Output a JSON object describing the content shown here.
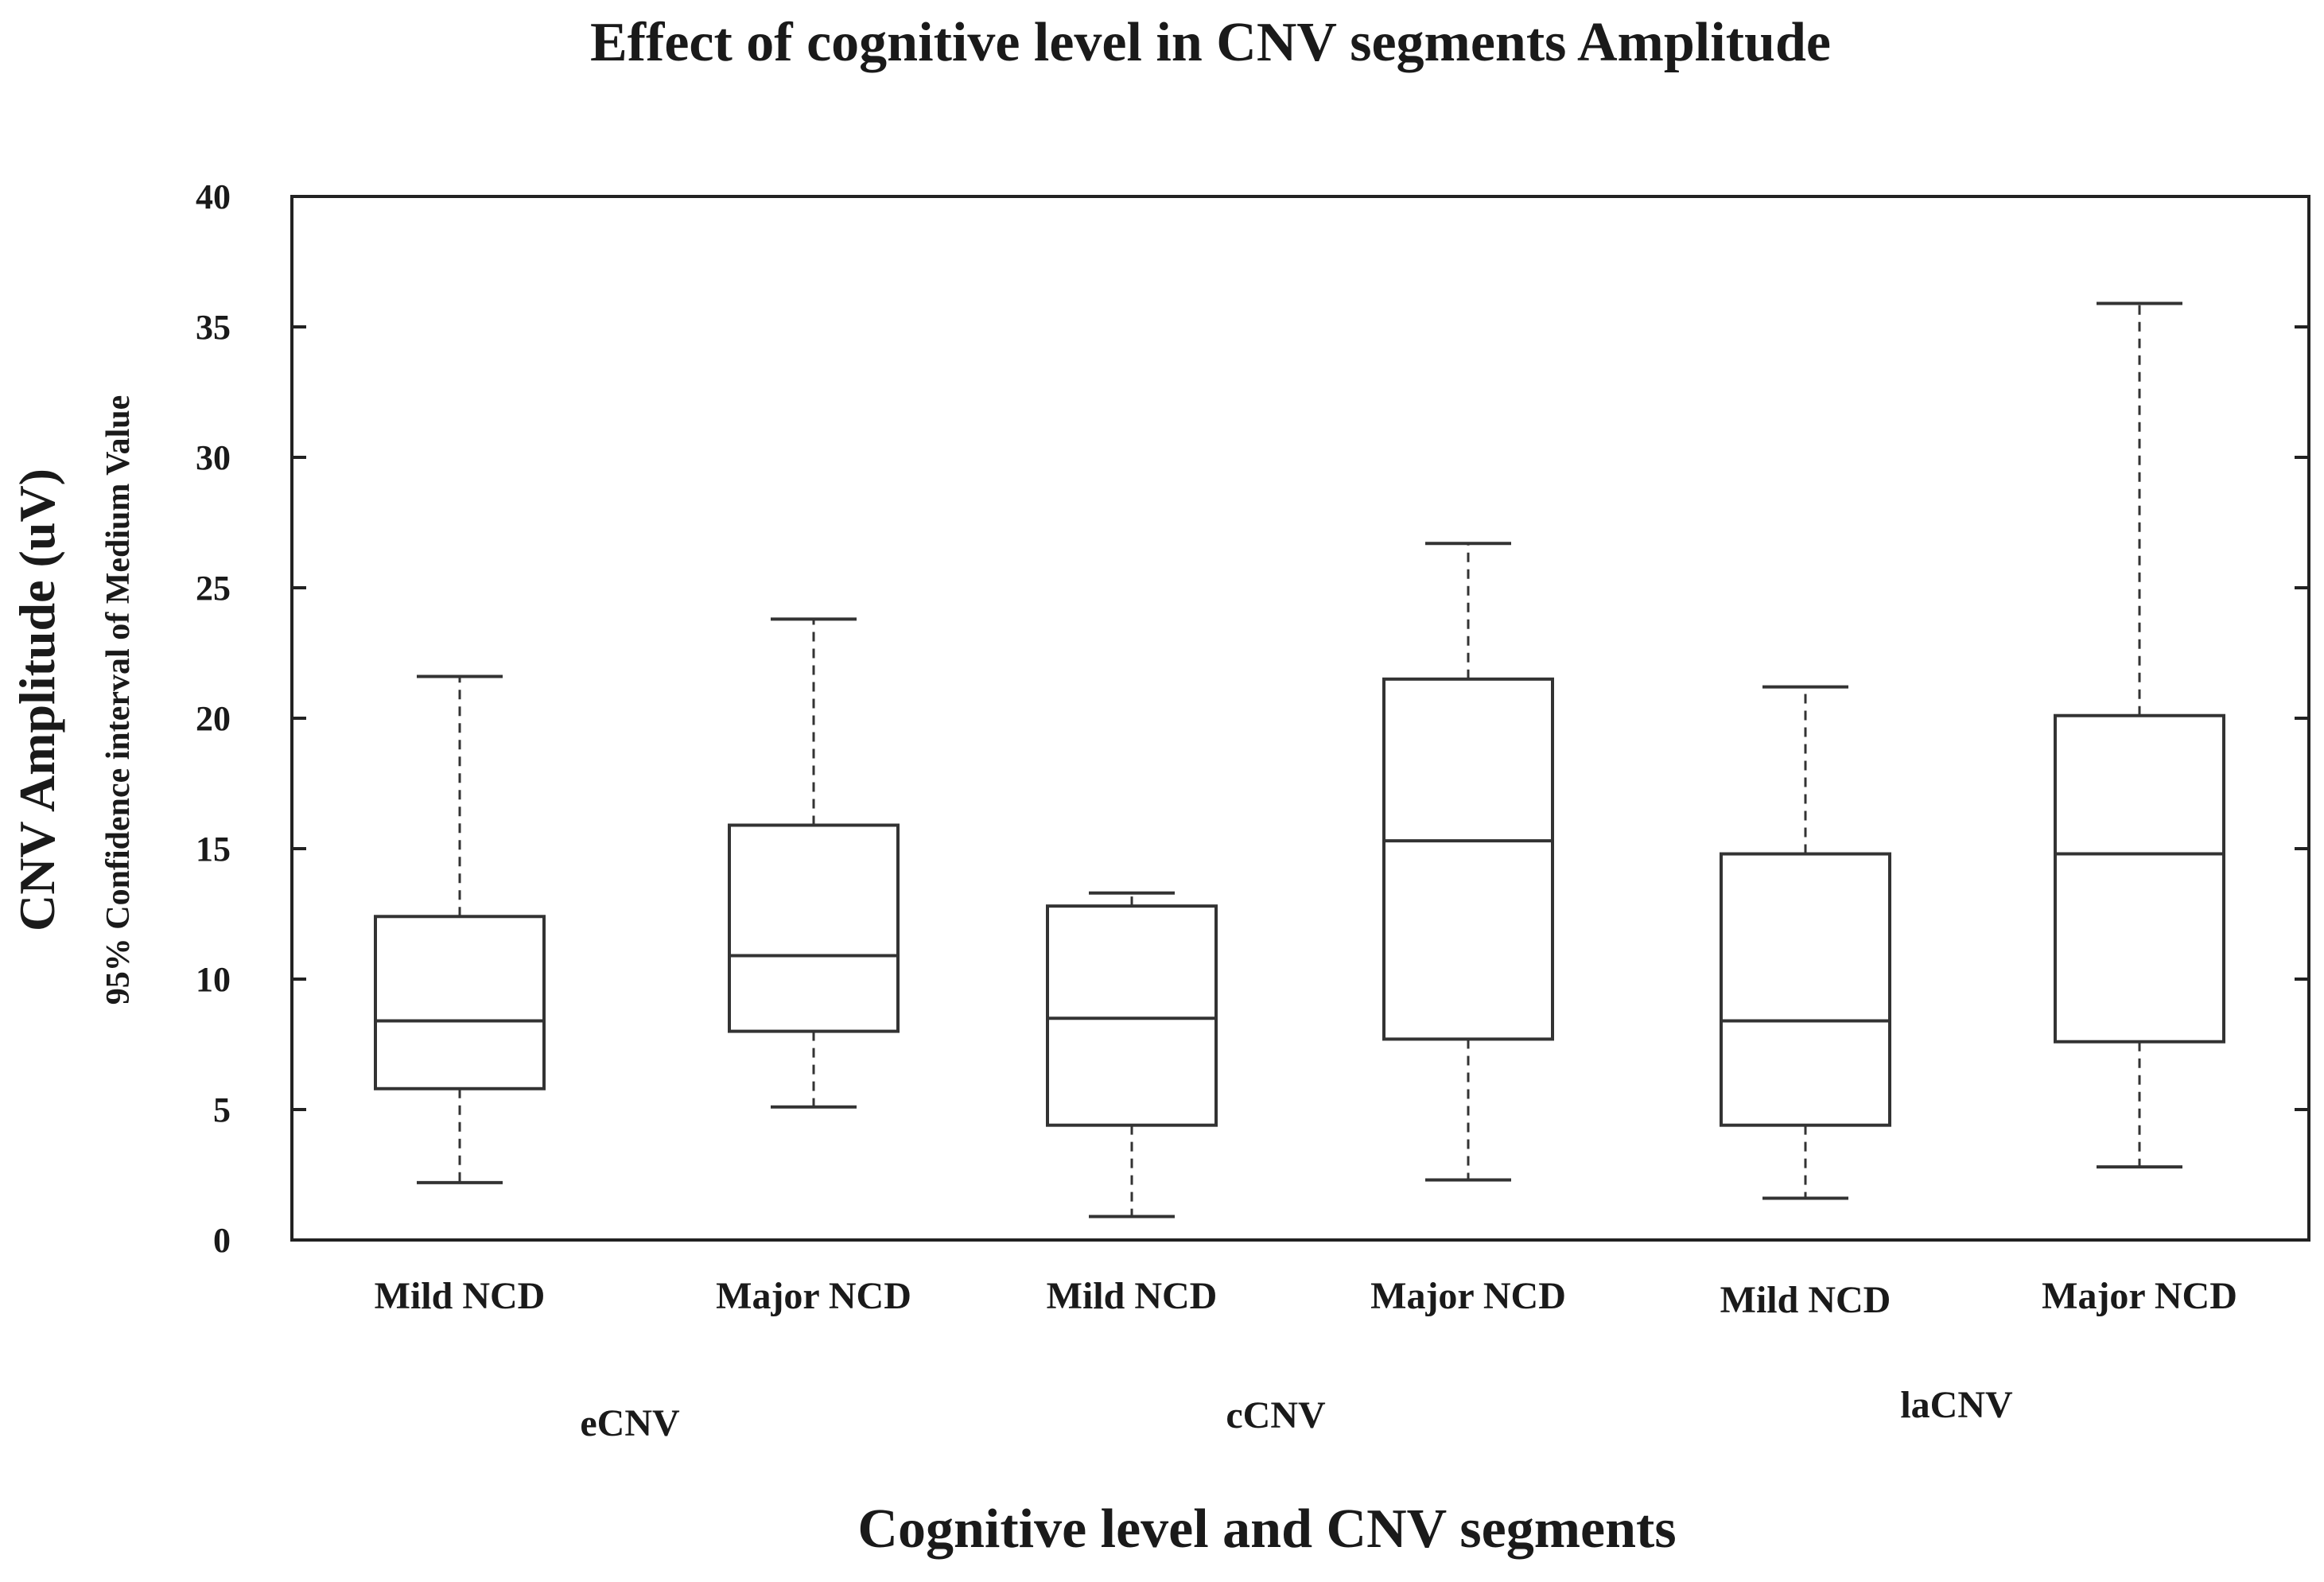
{
  "chart_data": {
    "type": "boxplot",
    "title": "Effect of  cognitive level in CNV segments Amplitude",
    "xlabel": "Cognitive level and CNV segments",
    "ylabel": "CNV Amplitude (uV)",
    "ylabel_secondary": "95% Confidence interval of Medium Value",
    "ylim": [
      0,
      40
    ],
    "yticks": [
      0,
      5,
      10,
      15,
      20,
      25,
      30,
      35,
      40
    ],
    "categories": [
      "Mild NCD",
      "Major NCD",
      "Mild NCD",
      "Major NCD",
      "Mild NCD",
      "Major NCD"
    ],
    "groups": [
      {
        "label": "eCNV",
        "members": [
          0,
          1
        ]
      },
      {
        "label": "cCNV",
        "members": [
          2,
          3
        ]
      },
      {
        "label": "laCNV",
        "members": [
          4,
          5
        ]
      }
    ],
    "boxes": [
      {
        "segment": "eCNV",
        "group": "Mild NCD",
        "min": 2.2,
        "q1": 5.8,
        "median": 8.4,
        "q3": 12.4,
        "max": 21.6
      },
      {
        "segment": "eCNV",
        "group": "Major NCD",
        "min": 5.1,
        "q1": 8.0,
        "median": 10.9,
        "q3": 15.9,
        "max": 23.8
      },
      {
        "segment": "cCNV",
        "group": "Mild NCD",
        "min": 0.9,
        "q1": 4.4,
        "median": 8.5,
        "q3": 12.8,
        "max": 13.3
      },
      {
        "segment": "cCNV",
        "group": "Major NCD",
        "min": 2.3,
        "q1": 7.7,
        "median": 15.3,
        "q3": 21.5,
        "max": 26.7
      },
      {
        "segment": "laCNV",
        "group": "Mild NCD",
        "min": 1.6,
        "q1": 4.4,
        "median": 8.4,
        "q3": 14.8,
        "max": 21.2
      },
      {
        "segment": "laCNV",
        "group": "Major NCD",
        "min": 2.8,
        "q1": 7.6,
        "median": 14.8,
        "q3": 20.1,
        "max": 35.9
      }
    ]
  }
}
